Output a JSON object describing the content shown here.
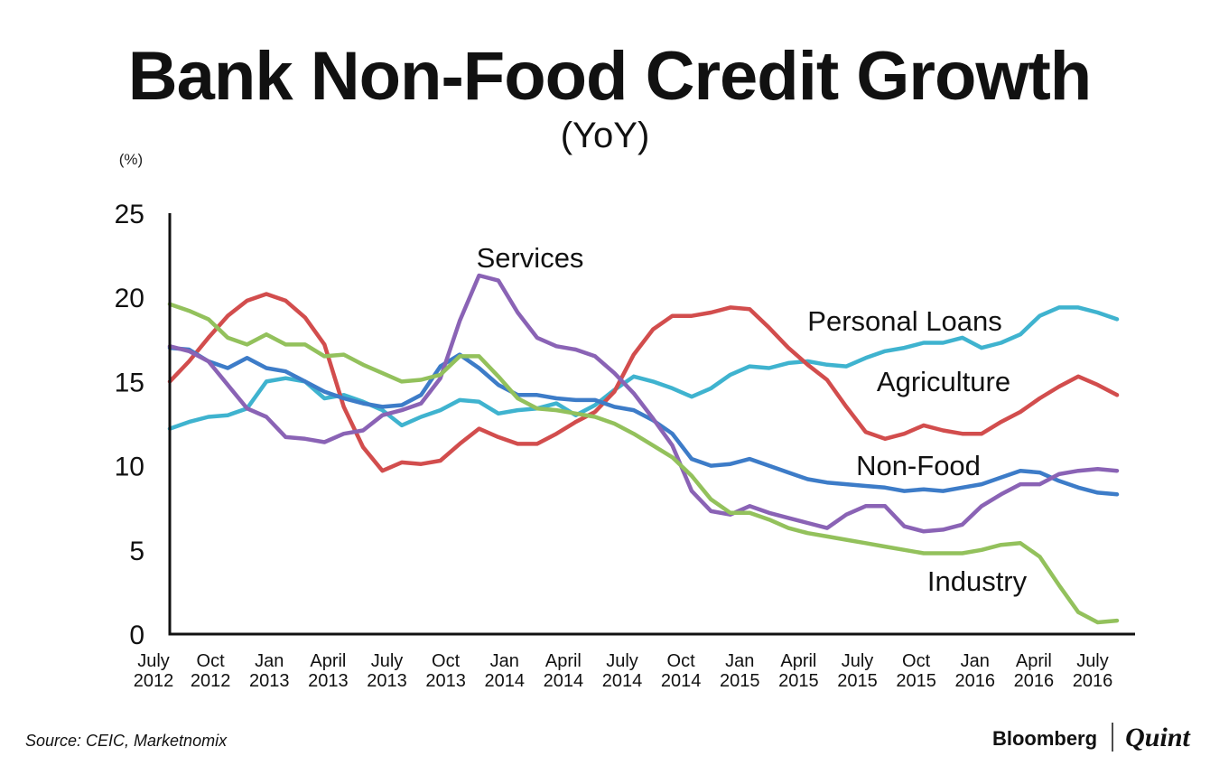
{
  "chart_data": {
    "type": "line",
    "title": "Bank Non-Food Credit Growth",
    "subtitle": "(YoY)",
    "ylabel": "(%)",
    "xlabel": "",
    "ylim": [
      0,
      25
    ],
    "yticks": [
      "0",
      "5",
      "10",
      "15",
      "20",
      "25"
    ],
    "grid": false,
    "x_ticks": [
      {
        "i": 0,
        "line1": "July",
        "line2": "2012"
      },
      {
        "i": 3,
        "line1": "Oct",
        "line2": "2012"
      },
      {
        "i": 6,
        "line1": "Jan",
        "line2": "2013"
      },
      {
        "i": 9,
        "line1": "April",
        "line2": "2013"
      },
      {
        "i": 12,
        "line1": "July",
        "line2": "2013"
      },
      {
        "i": 15,
        "line1": "Oct",
        "line2": "2013"
      },
      {
        "i": 18,
        "line1": "Jan",
        "line2": "2014"
      },
      {
        "i": 21,
        "line1": "April",
        "line2": "2014"
      },
      {
        "i": 24,
        "line1": "July",
        "line2": "2014"
      },
      {
        "i": 27,
        "line1": "Oct",
        "line2": "2014"
      },
      {
        "i": 30,
        "line1": "Jan",
        "line2": "2015"
      },
      {
        "i": 33,
        "line1": "April",
        "line2": "2015"
      },
      {
        "i": 36,
        "line1": "July",
        "line2": "2015"
      },
      {
        "i": 39,
        "line1": "Oct",
        "line2": "2015"
      },
      {
        "i": 42,
        "line1": "Jan",
        "line2": "2016"
      },
      {
        "i": 45,
        "line1": "April",
        "line2": "2016"
      },
      {
        "i": 48,
        "line1": "July",
        "line2": "2016"
      }
    ],
    "series": [
      {
        "name": "Personal Loans",
        "color": "#3fb3cf",
        "values": [
          12.2,
          12.6,
          12.9,
          13.0,
          13.4,
          15.0,
          15.2,
          15.0,
          14.0,
          14.2,
          13.8,
          13.3,
          12.4,
          12.9,
          13.3,
          13.9,
          13.8,
          13.1,
          13.3,
          13.4,
          13.7,
          13.0,
          13.6,
          14.5,
          15.3,
          15.0,
          14.6,
          14.1,
          14.6,
          15.4,
          15.9,
          15.8,
          16.1,
          16.2,
          16.0,
          15.9,
          16.4,
          16.8,
          17.0,
          17.3,
          17.3,
          17.6,
          17.0,
          17.3,
          17.8,
          18.9,
          19.4,
          19.4,
          19.1,
          18.7
        ]
      },
      {
        "name": "Agriculture",
        "color": "#d24d4d",
        "values": [
          15.0,
          16.2,
          17.6,
          18.9,
          19.8,
          20.2,
          19.8,
          18.8,
          17.2,
          13.5,
          11.1,
          9.7,
          10.2,
          10.1,
          10.3,
          11.3,
          12.2,
          11.7,
          11.3,
          11.3,
          11.9,
          12.6,
          13.2,
          14.4,
          16.6,
          18.1,
          18.9,
          18.9,
          19.1,
          19.4,
          19.3,
          18.2,
          17.0,
          16.0,
          15.1,
          13.5,
          12.0,
          11.6,
          11.9,
          12.4,
          12.1,
          11.9,
          11.9,
          12.6,
          13.2,
          14.0,
          14.7,
          15.3,
          14.8,
          14.2
        ]
      },
      {
        "name": "Non-Food",
        "color": "#3d7cc8",
        "values": [
          17.0,
          16.9,
          16.2,
          15.8,
          16.4,
          15.8,
          15.6,
          15.0,
          14.4,
          14.0,
          13.7,
          13.5,
          13.6,
          14.2,
          15.9,
          16.6,
          15.8,
          14.8,
          14.2,
          14.2,
          14.0,
          13.9,
          13.9,
          13.5,
          13.3,
          12.7,
          11.9,
          10.4,
          10.0,
          10.1,
          10.4,
          10.0,
          9.6,
          9.2,
          9.0,
          8.9,
          8.8,
          8.7,
          8.5,
          8.6,
          8.5,
          8.7,
          8.9,
          9.3,
          9.7,
          9.6,
          9.1,
          8.7,
          8.4,
          8.3
        ]
      },
      {
        "name": "Services",
        "color": "#8a63b5",
        "values": [
          17.1,
          16.8,
          16.2,
          14.8,
          13.4,
          12.9,
          11.7,
          11.6,
          11.4,
          11.9,
          12.1,
          13.0,
          13.3,
          13.7,
          15.2,
          18.6,
          21.3,
          21.0,
          19.1,
          17.6,
          17.1,
          16.9,
          16.5,
          15.5,
          14.3,
          12.8,
          11.2,
          8.5,
          7.3,
          7.1,
          7.6,
          7.2,
          6.9,
          6.6,
          6.3,
          7.1,
          7.6,
          7.6,
          6.4,
          6.1,
          6.2,
          6.5,
          7.6,
          8.3,
          8.9,
          8.9,
          9.5,
          9.7,
          9.8,
          9.7
        ]
      },
      {
        "name": "Industry",
        "color": "#93c15c",
        "values": [
          19.6,
          19.2,
          18.7,
          17.6,
          17.2,
          17.8,
          17.2,
          17.2,
          16.5,
          16.6,
          16.0,
          15.5,
          15.0,
          15.1,
          15.4,
          16.5,
          16.5,
          15.3,
          14.0,
          13.4,
          13.3,
          13.1,
          12.9,
          12.5,
          11.9,
          11.2,
          10.5,
          9.4,
          8.0,
          7.2,
          7.2,
          6.8,
          6.3,
          6.0,
          5.8,
          5.6,
          5.4,
          5.2,
          5.0,
          4.8,
          4.8,
          4.8,
          5.0,
          5.3,
          5.4,
          4.6,
          2.9,
          1.3,
          0.7,
          0.8
        ]
      }
    ],
    "annotations": [
      {
        "series": "Services",
        "text": "Services"
      },
      {
        "series": "Personal Loans",
        "text": "Personal Loans"
      },
      {
        "series": "Agriculture",
        "text": "Agriculture"
      },
      {
        "series": "Non-Food",
        "text": "Non-Food"
      },
      {
        "series": "Industry",
        "text": "Industry"
      }
    ]
  },
  "footer": {
    "source": "Source: CEIC, Marketnomix",
    "brand_left": "Bloomberg",
    "brand_right": "Quint"
  }
}
